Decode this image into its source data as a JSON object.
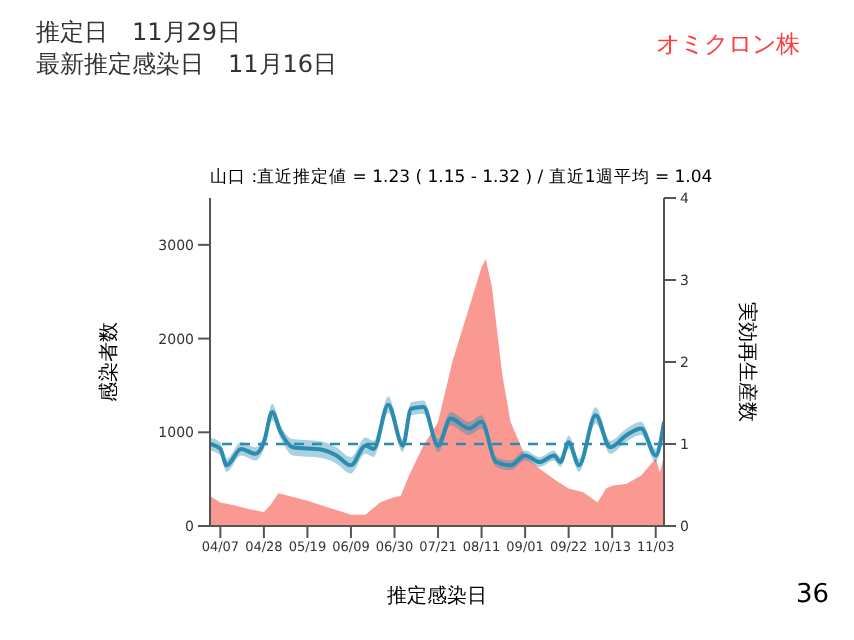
{
  "chart_data": {
    "type": "area",
    "title": "山口 :直近推定値 = 1.23 ( 1.15 - 1.32 ) / 直近1週平均 = 1.04",
    "xlabel": "推定感染日",
    "ylabel": "感染者数",
    "y2label": "実効再生産数",
    "annotations": [
      "推定日　11月29日",
      "最新推定感染日　11月16日",
      "オミクロン株",
      "36"
    ],
    "xlim": [
      "--04-02",
      "--11-07"
    ],
    "xticks": [
      {
        "value": "--04-07",
        "label": "04/07"
      },
      {
        "value": "--04-28",
        "label": "04/28"
      },
      {
        "value": "--05-19",
        "label": "05/19"
      },
      {
        "value": "--06-09",
        "label": "06/09"
      },
      {
        "value": "--06-30",
        "label": "06/30"
      },
      {
        "value": "--07-21",
        "label": "07/21"
      },
      {
        "value": "--08-11",
        "label": "08/11"
      },
      {
        "value": "--09-01",
        "label": "09/01"
      },
      {
        "value": "--09-22",
        "label": "09/22"
      },
      {
        "value": "--10-13",
        "label": "10/13"
      },
      {
        "value": "--11-03",
        "label": "11/03"
      }
    ],
    "ylim": [
      0,
      3500
    ],
    "yticks": [
      0,
      1000,
      2000,
      3000
    ],
    "y2lim": [
      0,
      4
    ],
    "y2ticks": [
      0,
      1,
      2,
      3,
      4
    ],
    "series": [
      {
        "color": "#f8766d",
        "x": [
          "--04-02",
          "--04-07",
          "--04-14",
          "--04-21",
          "--04-28",
          "--05-01",
          "--05-05",
          "--05-12",
          "--05-19",
          "--05-26",
          "--06-02",
          "--06-09",
          "--06-16",
          "--06-23",
          "--06-30",
          "--07-03",
          "--07-07",
          "--07-14",
          "--07-21",
          "--07-28",
          "--08-04",
          "--08-11",
          "--08-13",
          "--08-16",
          "--08-21",
          "--08-25",
          "--09-01",
          "--09-08",
          "--09-15",
          "--09-22",
          "--09-29",
          "--10-06",
          "--10-10",
          "--10-13",
          "--10-20",
          "--10-27",
          "--11-03",
          "--11-05",
          "--11-07"
        ],
        "values": [
          320,
          250,
          220,
          180,
          150,
          220,
          350,
          310,
          270,
          220,
          170,
          120,
          120,
          250,
          310,
          320,
          540,
          860,
          1110,
          1760,
          2260,
          2760,
          2850,
          2550,
          1610,
          1110,
          750,
          610,
          500,
          400,
          360,
          250,
          400,
          430,
          450,
          540,
          720,
          570,
          750
        ]
      },
      {
        "type": "line",
        "axis": "y2",
        "color": "#2b8cb0",
        "x": [
          "--04-02",
          "--04-07",
          "--04-10",
          "--04-17",
          "--04-24",
          "--04-28",
          "--05-02",
          "--05-06",
          "--05-12",
          "--05-26",
          "--06-02",
          "--06-09",
          "--06-16",
          "--06-20",
          "--06-27",
          "--07-04",
          "--07-08",
          "--07-14",
          "--07-21",
          "--07-27",
          "--08-05",
          "--08-11",
          "--08-18",
          "--08-25",
          "--09-01",
          "--09-08",
          "--09-15",
          "--09-18",
          "--09-22",
          "--09-27",
          "--10-05",
          "--10-12",
          "--10-20",
          "--10-27",
          "--11-03",
          "--11-07"
        ],
        "values": [
          1.0,
          0.94,
          0.74,
          0.94,
          0.88,
          1.02,
          1.39,
          1.15,
          0.96,
          0.93,
          0.86,
          0.74,
          0.98,
          0.94,
          1.48,
          0.98,
          1.43,
          1.45,
          0.98,
          1.31,
          1.19,
          1.27,
          0.78,
          0.74,
          0.86,
          0.78,
          0.86,
          0.78,
          1.02,
          0.74,
          1.35,
          0.96,
          1.11,
          1.19,
          0.86,
          1.27
        ],
        "lower": [
          0.92,
          0.86,
          0.66,
          0.86,
          0.8,
          0.94,
          1.29,
          1.07,
          0.86,
          0.83,
          0.76,
          0.64,
          0.88,
          0.84,
          1.38,
          0.9,
          1.35,
          1.37,
          0.9,
          1.23,
          1.11,
          1.19,
          0.72,
          0.68,
          0.8,
          0.72,
          0.8,
          0.72,
          0.94,
          0.66,
          1.25,
          0.88,
          1.03,
          1.11,
          0.78,
          1.15
        ],
        "upper": [
          1.08,
          1.02,
          0.82,
          1.02,
          0.96,
          1.1,
          1.49,
          1.23,
          1.06,
          1.03,
          0.96,
          0.84,
          1.08,
          1.04,
          1.58,
          1.06,
          1.51,
          1.53,
          1.06,
          1.39,
          1.27,
          1.35,
          0.84,
          0.8,
          0.92,
          0.84,
          0.92,
          0.84,
          1.1,
          0.82,
          1.45,
          1.04,
          1.19,
          1.27,
          0.94,
          1.39
        ]
      }
    ],
    "ref_lines": [
      {
        "axis": "y2",
        "value": 1,
        "color": "#2b8cb0",
        "line_style": "dashed"
      }
    ]
  }
}
